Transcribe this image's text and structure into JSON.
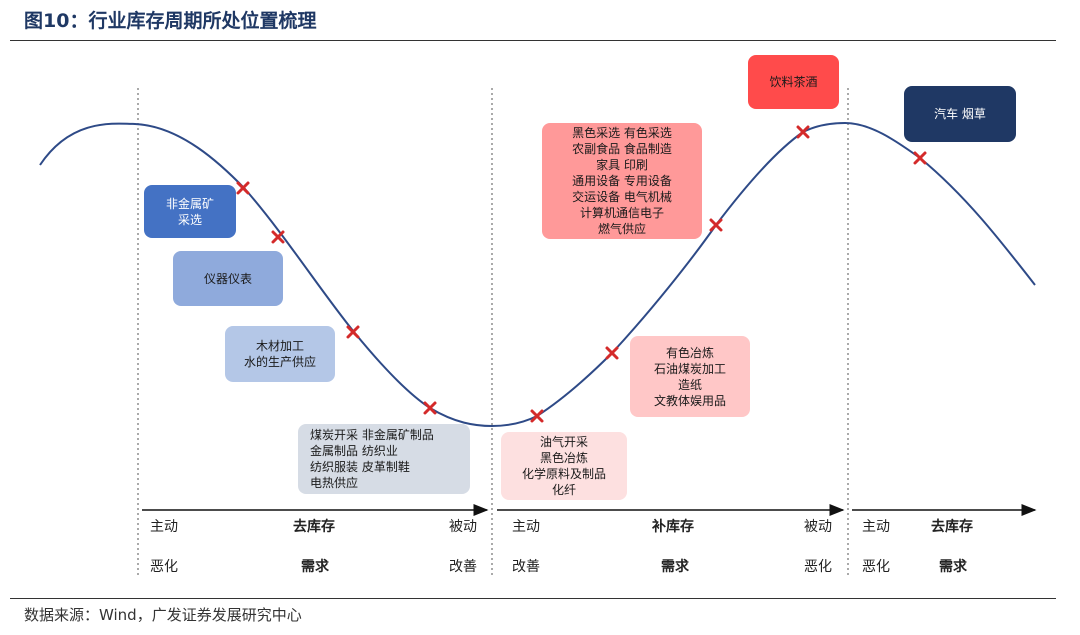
{
  "title": "图10：行业库存周期所处位置梳理",
  "source": "数据来源：Wind，广发证券发展研究中心",
  "colors": {
    "curve": "#2e4a87",
    "marker": "#d42a2a",
    "blue_dark": "#1f3864",
    "blue_mid": "#4472c4",
    "blue_light": "#8faadc",
    "blue_pale": "#b4c7e7",
    "gray_blue": "#d6dce5",
    "red": "#ff4b4b",
    "pink_mid": "#ff9999",
    "pink_light": "#ffc7c7",
    "pink_pale": "#fde0e0"
  },
  "boxes": {
    "b1": [
      "非金属矿",
      "采选"
    ],
    "b2": [
      "仪器仪表"
    ],
    "b3": [
      "木材加工",
      "水的生产供应"
    ],
    "b4": [
      "煤炭开采  非金属矿制品",
      "金属制品  纺织业",
      "纺织服装  皮革制鞋",
      "电热供应"
    ],
    "b5": [
      "油气开采",
      "黑色冶炼",
      "化学原料及制品",
      "化纤"
    ],
    "b6": [
      "有色冶炼",
      "石油煤炭加工",
      "造纸",
      "文教体娱用品"
    ],
    "b7": [
      "黑色采选  有色采选",
      "农副食品  食品制造",
      "家具  印刷",
      "通用设备  专用设备",
      "交运设备  电气机械",
      "计算机通信电子",
      "燃气供应"
    ],
    "b8": [
      "饮料茶酒"
    ],
    "b9": [
      "汽车  烟草"
    ]
  },
  "phases": [
    {
      "left_top": "主动",
      "center_top": "去库存",
      "right_top": "被动",
      "left_bottom": "恶化",
      "center_bottom": "需求",
      "right_bottom": "改善"
    },
    {
      "left_top": "主动",
      "center_top": "补库存",
      "right_top": "被动",
      "left_bottom": "改善",
      "center_bottom": "需求",
      "right_bottom": "恶化"
    },
    {
      "left_top": "主动",
      "center_top": "去库存",
      "left_bottom": "恶化",
      "center_bottom": "需求"
    }
  ]
}
